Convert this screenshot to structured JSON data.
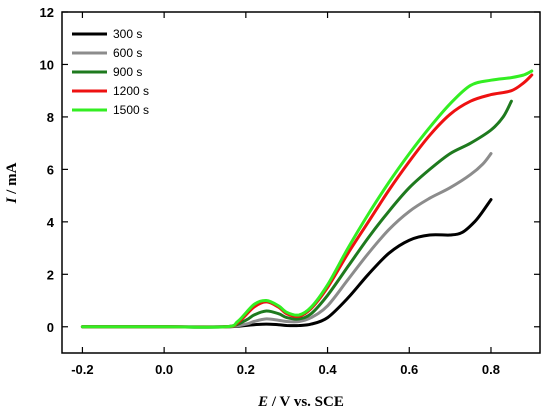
{
  "chart_data": {
    "type": "line",
    "xlabel_italic": "E",
    "xlabel_rest": " / V vs. SCE",
    "ylabel_italic": "I",
    "ylabel_rest": " / mA",
    "xlim": [
      -0.25,
      0.92
    ],
    "ylim": [
      -1,
      12
    ],
    "xticks": [
      {
        "value": -0.2,
        "label": "-0.2"
      },
      {
        "value": 0.0,
        "label": "0.0"
      },
      {
        "value": 0.2,
        "label": "0.2"
      },
      {
        "value": 0.4,
        "label": "0.4"
      },
      {
        "value": 0.6,
        "label": "0.6"
      },
      {
        "value": 0.8,
        "label": "0.8"
      }
    ],
    "yticks": [
      {
        "value": 0,
        "label": "0"
      },
      {
        "value": 2,
        "label": "2"
      },
      {
        "value": 4,
        "label": "4"
      },
      {
        "value": 6,
        "label": "6"
      },
      {
        "value": 8,
        "label": "8"
      },
      {
        "value": 10,
        "label": "10"
      },
      {
        "value": 12,
        "label": "12"
      }
    ],
    "grid": false,
    "legend_position": "top-left",
    "series": [
      {
        "name": "300 s",
        "color": "#000000",
        "x": [
          -0.2,
          0.0,
          0.15,
          0.2,
          0.22,
          0.25,
          0.28,
          0.3,
          0.33,
          0.36,
          0.4,
          0.45,
          0.5,
          0.55,
          0.6,
          0.65,
          0.7,
          0.73,
          0.76,
          0.78,
          0.8
        ],
        "y": [
          0,
          0,
          0,
          0.05,
          0.08,
          0.1,
          0.08,
          0.05,
          0.05,
          0.1,
          0.35,
          1.1,
          2.0,
          2.8,
          3.3,
          3.5,
          3.5,
          3.6,
          4.0,
          4.4,
          4.85
        ]
      },
      {
        "name": "600 s",
        "color": "#8c8c8c",
        "x": [
          -0.2,
          0.0,
          0.15,
          0.2,
          0.22,
          0.25,
          0.28,
          0.3,
          0.33,
          0.36,
          0.4,
          0.45,
          0.5,
          0.55,
          0.6,
          0.65,
          0.7,
          0.75,
          0.78,
          0.8
        ],
        "y": [
          0,
          0,
          0,
          0.1,
          0.2,
          0.3,
          0.25,
          0.2,
          0.2,
          0.35,
          0.8,
          1.8,
          2.8,
          3.7,
          4.4,
          4.9,
          5.3,
          5.8,
          6.2,
          6.6
        ]
      },
      {
        "name": "900 s",
        "color": "#1e7a1e",
        "x": [
          -0.2,
          0.0,
          0.15,
          0.2,
          0.22,
          0.25,
          0.28,
          0.3,
          0.33,
          0.36,
          0.4,
          0.45,
          0.5,
          0.55,
          0.6,
          0.65,
          0.7,
          0.75,
          0.8,
          0.83,
          0.85
        ],
        "y": [
          0,
          0,
          0,
          0.25,
          0.45,
          0.6,
          0.5,
          0.35,
          0.3,
          0.5,
          1.2,
          2.3,
          3.4,
          4.4,
          5.3,
          6.0,
          6.6,
          7.0,
          7.5,
          8.0,
          8.6
        ]
      },
      {
        "name": "1200 s",
        "color": "#ee1111",
        "x": [
          -0.2,
          0.0,
          0.15,
          0.18,
          0.22,
          0.25,
          0.28,
          0.3,
          0.33,
          0.36,
          0.4,
          0.45,
          0.5,
          0.55,
          0.6,
          0.65,
          0.7,
          0.75,
          0.8,
          0.85,
          0.88,
          0.9
        ],
        "y": [
          0,
          0,
          0,
          0.15,
          0.75,
          0.95,
          0.75,
          0.5,
          0.4,
          0.7,
          1.5,
          2.8,
          4.0,
          5.2,
          6.3,
          7.3,
          8.1,
          8.6,
          8.85,
          9.0,
          9.3,
          9.6
        ]
      },
      {
        "name": "1500 s",
        "color": "#33ee22",
        "x": [
          -0.2,
          0.0,
          0.15,
          0.18,
          0.22,
          0.25,
          0.28,
          0.3,
          0.33,
          0.36,
          0.4,
          0.45,
          0.5,
          0.55,
          0.6,
          0.65,
          0.7,
          0.75,
          0.8,
          0.85,
          0.88,
          0.9
        ],
        "y": [
          0,
          0,
          0,
          0.2,
          0.85,
          1.0,
          0.8,
          0.55,
          0.45,
          0.75,
          1.6,
          3.0,
          4.3,
          5.5,
          6.6,
          7.6,
          8.5,
          9.2,
          9.4,
          9.5,
          9.6,
          9.75
        ]
      }
    ]
  }
}
